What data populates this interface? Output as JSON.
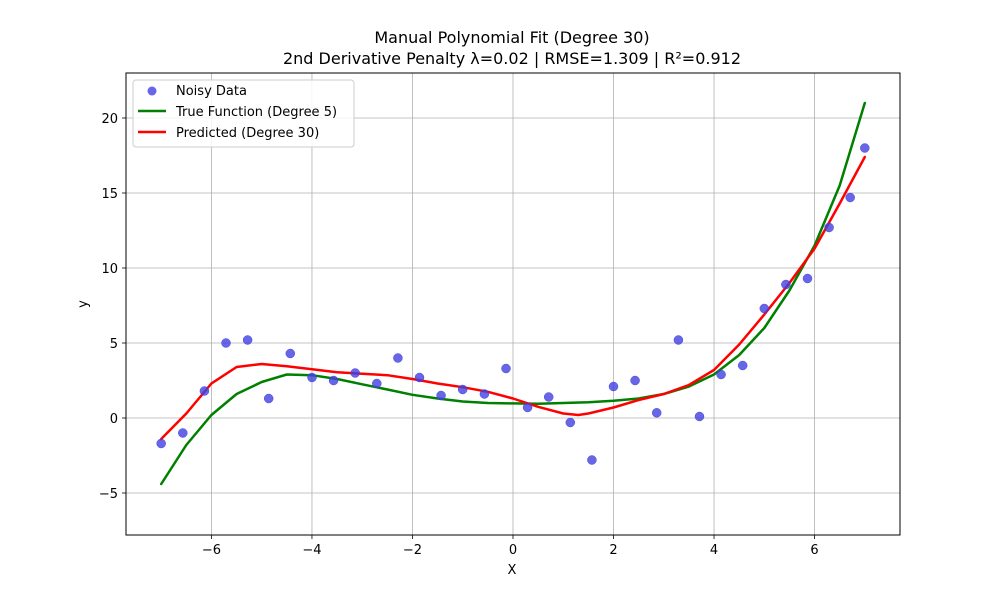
{
  "chart_data": {
    "type": "scatter",
    "title": "Manual Polynomial Fit (Degree 30)",
    "subtitle": "2nd Derivative Penalty λ=0.02 | RMSE=1.309 | R²=0.912",
    "xlabel": "X",
    "ylabel": "y",
    "xlim": [
      -7.7,
      7.7
    ],
    "ylim": [
      -7.8,
      23.0
    ],
    "xticks": [
      -6,
      -4,
      -2,
      0,
      2,
      4,
      6
    ],
    "xtick_labels": [
      "−6",
      "−4",
      "−2",
      "0",
      "2",
      "4",
      "6"
    ],
    "yticks": [
      -5,
      0,
      5,
      10,
      15,
      20
    ],
    "ytick_labels": [
      "−5",
      "0",
      "5",
      "10",
      "15",
      "20"
    ],
    "grid": true,
    "legend_position": "top-left",
    "series": [
      {
        "name": "Noisy Data",
        "kind": "scatter",
        "color": "#4040e0",
        "points": [
          [
            -7.0,
            -1.7
          ],
          [
            -6.57,
            -1.0
          ],
          [
            -6.14,
            1.8
          ],
          [
            -5.71,
            5.0
          ],
          [
            -5.28,
            5.2
          ],
          [
            -4.86,
            1.3
          ],
          [
            -4.43,
            4.3
          ],
          [
            -4.0,
            2.7
          ],
          [
            -3.57,
            2.5
          ],
          [
            -3.14,
            3.0
          ],
          [
            -2.71,
            2.3
          ],
          [
            -2.29,
            4.0
          ],
          [
            -1.86,
            2.7
          ],
          [
            -1.43,
            1.5
          ],
          [
            -1.0,
            1.9
          ],
          [
            -0.57,
            1.6
          ],
          [
            -0.14,
            3.3
          ],
          [
            0.29,
            0.7
          ],
          [
            0.71,
            1.4
          ],
          [
            1.14,
            -0.3
          ],
          [
            1.57,
            -2.8
          ],
          [
            2.0,
            2.1
          ],
          [
            2.43,
            2.5
          ],
          [
            2.86,
            0.35
          ],
          [
            3.29,
            5.2
          ],
          [
            3.71,
            0.1
          ],
          [
            4.14,
            2.9
          ],
          [
            4.57,
            3.5
          ],
          [
            5.0,
            7.3
          ],
          [
            5.43,
            8.9
          ],
          [
            5.86,
            9.3
          ],
          [
            6.29,
            12.7
          ],
          [
            6.71,
            14.7
          ],
          [
            7.0,
            18.0
          ]
        ]
      },
      {
        "name": "True Function (Degree 5)",
        "kind": "line",
        "color": "#008000",
        "points": [
          [
            -7.0,
            -4.4
          ],
          [
            -6.5,
            -1.8
          ],
          [
            -6.0,
            0.2
          ],
          [
            -5.5,
            1.6
          ],
          [
            -5.0,
            2.4
          ],
          [
            -4.5,
            2.9
          ],
          [
            -4.0,
            2.85
          ],
          [
            -3.5,
            2.6
          ],
          [
            -3.0,
            2.25
          ],
          [
            -2.5,
            1.9
          ],
          [
            -2.0,
            1.55
          ],
          [
            -1.5,
            1.3
          ],
          [
            -1.0,
            1.1
          ],
          [
            -0.5,
            1.0
          ],
          [
            0.0,
            0.97
          ],
          [
            0.5,
            0.95
          ],
          [
            1.0,
            1.0
          ],
          [
            1.5,
            1.05
          ],
          [
            2.0,
            1.15
          ],
          [
            2.5,
            1.3
          ],
          [
            3.0,
            1.6
          ],
          [
            3.5,
            2.1
          ],
          [
            4.0,
            2.9
          ],
          [
            4.5,
            4.2
          ],
          [
            5.0,
            6.0
          ],
          [
            5.5,
            8.5
          ],
          [
            6.0,
            11.5
          ],
          [
            6.5,
            15.5
          ],
          [
            7.0,
            21.0
          ]
        ]
      },
      {
        "name": "Predicted (Degree 30)",
        "kind": "line",
        "color": "#ff0000",
        "points": [
          [
            -7.0,
            -1.4
          ],
          [
            -6.5,
            0.3
          ],
          [
            -6.0,
            2.3
          ],
          [
            -5.5,
            3.4
          ],
          [
            -5.0,
            3.6
          ],
          [
            -4.5,
            3.45
          ],
          [
            -4.0,
            3.25
          ],
          [
            -3.5,
            3.05
          ],
          [
            -3.0,
            2.95
          ],
          [
            -2.5,
            2.85
          ],
          [
            -2.0,
            2.6
          ],
          [
            -1.5,
            2.3
          ],
          [
            -1.0,
            2.05
          ],
          [
            -0.5,
            1.75
          ],
          [
            0.0,
            1.3
          ],
          [
            0.5,
            0.75
          ],
          [
            1.0,
            0.3
          ],
          [
            1.3,
            0.2
          ],
          [
            1.5,
            0.3
          ],
          [
            2.0,
            0.7
          ],
          [
            2.5,
            1.2
          ],
          [
            3.0,
            1.6
          ],
          [
            3.5,
            2.2
          ],
          [
            4.0,
            3.2
          ],
          [
            4.5,
            4.9
          ],
          [
            5.0,
            6.9
          ],
          [
            5.5,
            9.0
          ],
          [
            6.0,
            11.3
          ],
          [
            6.5,
            14.3
          ],
          [
            7.0,
            17.4
          ]
        ]
      }
    ]
  }
}
